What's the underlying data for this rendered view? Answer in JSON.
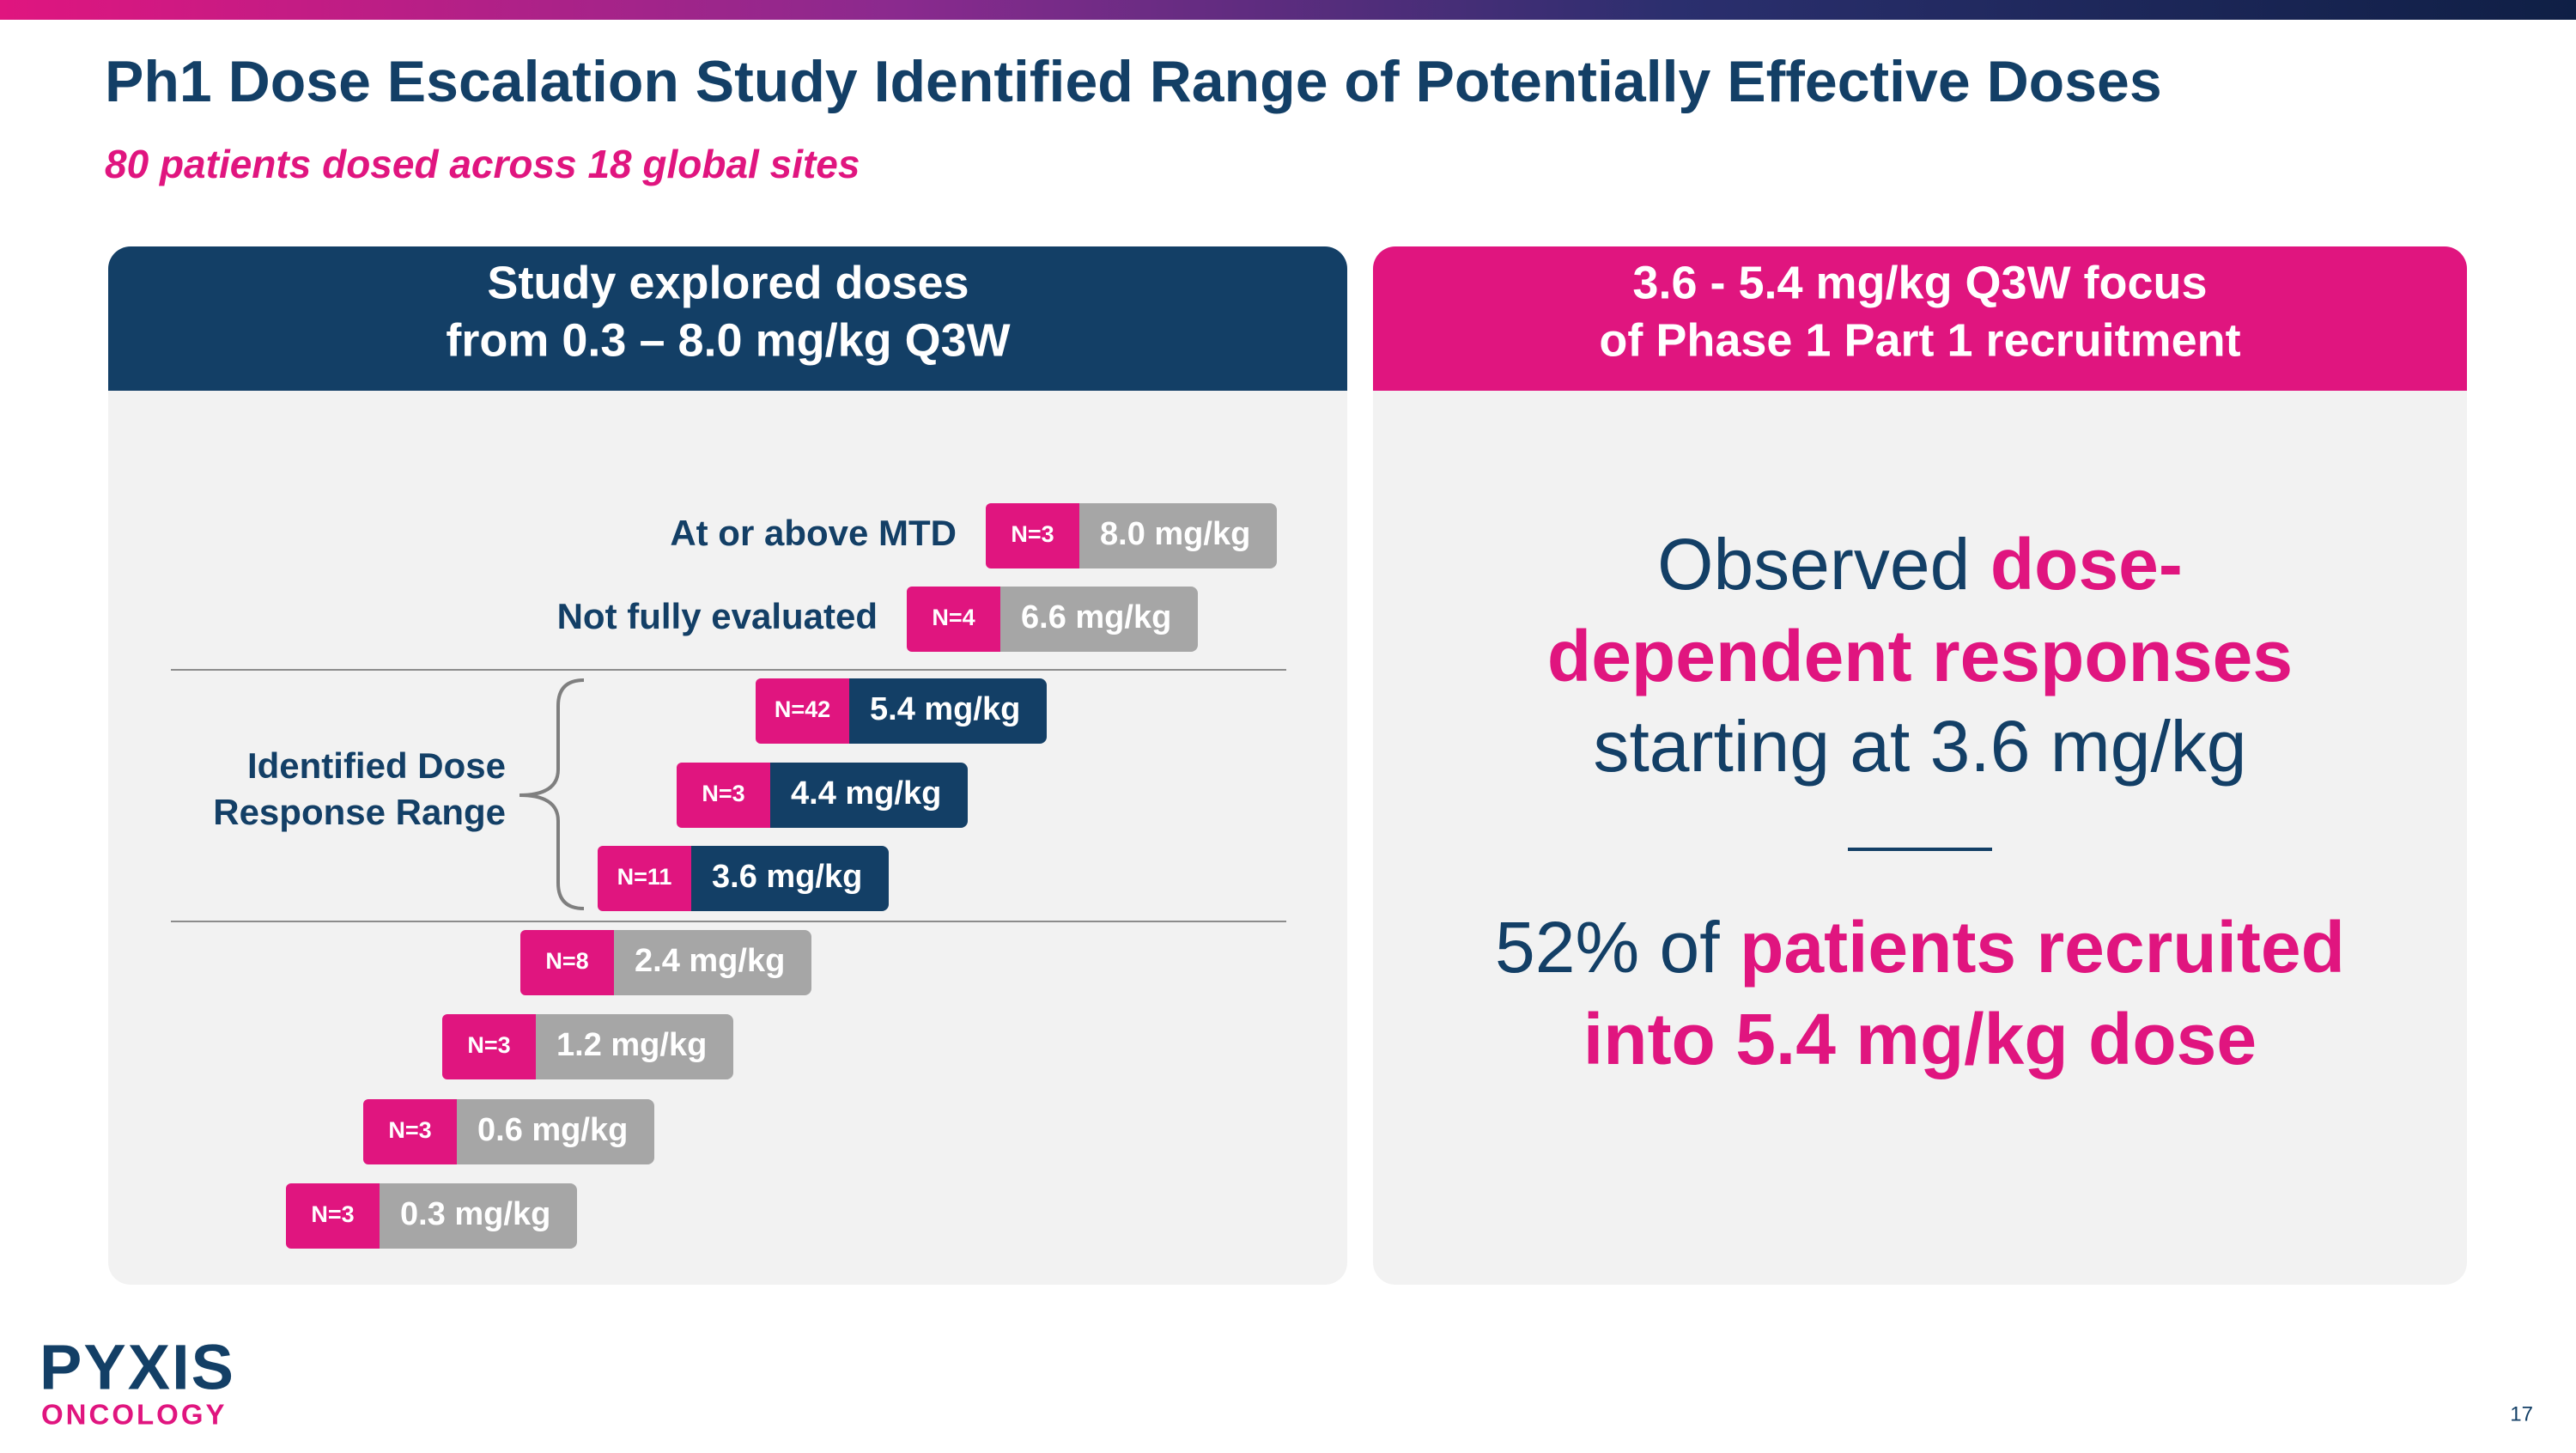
{
  "header": {
    "title": "Ph1 Dose Escalation Study Identified Range of Potentially Effective Doses",
    "subtitle": "80 patients dosed across 18 global sites"
  },
  "left_panel": {
    "heading": [
      "Study explored doses",
      "from 0.3 – 8.0 mg/kg Q3W"
    ],
    "bracket_label": [
      "Identified Dose",
      "Response Range"
    ],
    "doses": [
      {
        "label": "At or above MTD",
        "n": "N=3",
        "dose": "8.0 mg/kg",
        "color": "#a6a6a6"
      },
      {
        "label": "Not fully evaluated",
        "n": "N=4",
        "dose": "6.6 mg/kg",
        "color": "#a6a6a6"
      },
      {
        "n": "N=42",
        "dose": "5.4 mg/kg",
        "color": "#133f66"
      },
      {
        "n": "N=3",
        "dose": "4.4 mg/kg",
        "color": "#133f66"
      },
      {
        "n": "N=11",
        "dose": "3.6 mg/kg",
        "color": "#133f66"
      },
      {
        "n": "N=8",
        "dose": "2.4 mg/kg",
        "color": "#a6a6a6"
      },
      {
        "n": "N=3",
        "dose": "1.2 mg/kg",
        "color": "#a6a6a6"
      },
      {
        "n": "N=3",
        "dose": "0.6 mg/kg",
        "color": "#a6a6a6"
      },
      {
        "n": "N=3",
        "dose": "0.3 mg/kg",
        "color": "#a6a6a6"
      }
    ]
  },
  "right_panel": {
    "heading": [
      "3.6 - 5.4 mg/kg Q3W focus",
      "of Phase 1 Part 1 recruitment"
    ],
    "statement_1": [
      [
        {
          "text": "Observed",
          "color": "#133f66",
          "bold": false
        },
        {
          "text": "dose-",
          "color": "#e0157f",
          "bold": true
        }
      ],
      [
        {
          "text": "dependent responses",
          "color": "#e0157f",
          "bold": true
        }
      ],
      [
        {
          "text": "starting at 3.6 mg/kg",
          "color": "#133f66",
          "bold": false
        }
      ]
    ],
    "statement_2": [
      [
        {
          "text": "52% of",
          "color": "#133f66",
          "bold": false
        },
        {
          "text": "patients recruited",
          "color": "#e0157f",
          "bold": true
        }
      ],
      [
        {
          "text": "into 5.4 mg/kg dose",
          "color": "#e0157f",
          "bold": true
        }
      ]
    ]
  },
  "footer": {
    "logo_top": "PYXIS",
    "logo_bottom": "ONCOLOGY",
    "page_number": "17"
  }
}
